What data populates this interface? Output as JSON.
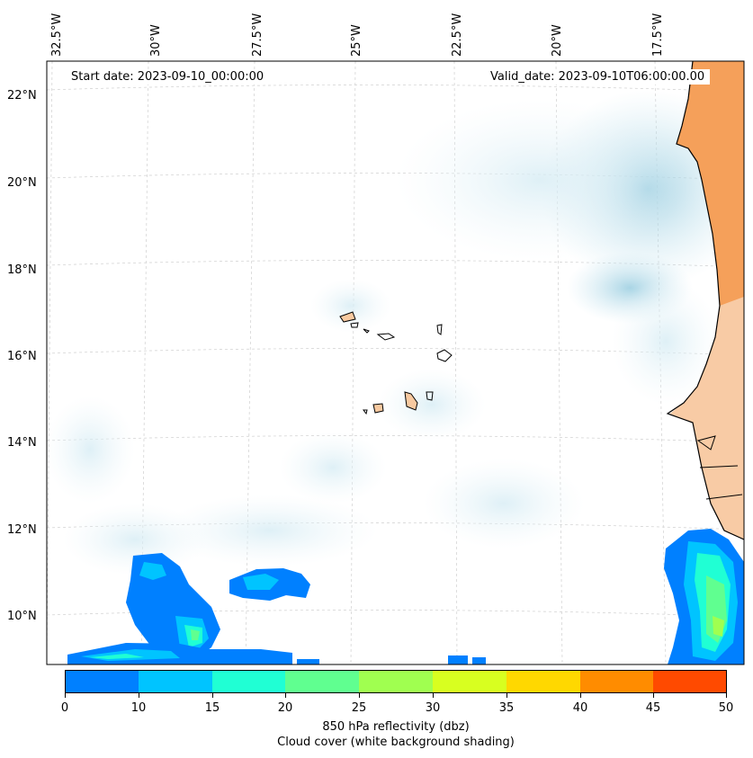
{
  "map": {
    "start_date": "Start date: 2023-09-10_00:00:00",
    "valid_date": "Valid_date: 2023-09-10T06:00:00.00",
    "lon_labels": [
      "32.5°W",
      "30°W",
      "27.5°W",
      "25°W",
      "22.5°W",
      "20°W",
      "17.5°W"
    ],
    "lat_labels": [
      "22°N",
      "20°N",
      "18°N",
      "16°N",
      "14°N",
      "12°N",
      "10°N"
    ],
    "colors": {
      "land": "#f5a05a",
      "land_light": "#f8c9a0",
      "cloud": "#a9d6e5",
      "coast": "#000000",
      "grid": "#c8c8c8"
    }
  },
  "colorbar": {
    "label": "850 hPa reflectivity (dbz)",
    "sublabel": "Cloud cover (white background shading)",
    "ticks": [
      "0",
      "10",
      "15",
      "20",
      "25",
      "30",
      "35",
      "40",
      "45",
      "50"
    ],
    "colors": [
      "#0080ff",
      "#00c4ff",
      "#20ffd4",
      "#60ff90",
      "#a0ff50",
      "#d8ff20",
      "#ffd800",
      "#ff8c00",
      "#ff4a00"
    ]
  }
}
